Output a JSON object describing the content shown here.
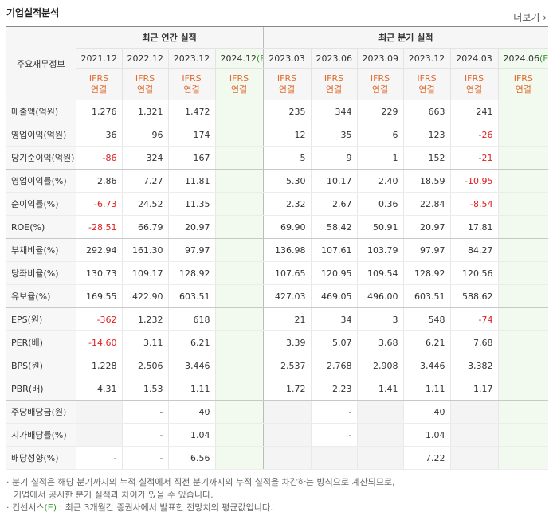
{
  "header": {
    "title": "기업실적분석",
    "more": "더보기"
  },
  "table": {
    "corner": "주요재무정보",
    "groups": [
      "최근 연간 실적",
      "최근 분기 실적"
    ],
    "columns": [
      {
        "period": "2021.12",
        "basis": "IFRS",
        "scope": "연결"
      },
      {
        "period": "2022.12",
        "basis": "IFRS",
        "scope": "연결"
      },
      {
        "period": "2023.12",
        "basis": "IFRS",
        "scope": "연결"
      },
      {
        "period": "2024.12",
        "estimate": "(E)",
        "basis": "IFRS",
        "scope": "연결"
      },
      {
        "period": "2023.03",
        "basis": "IFRS",
        "scope": "연결"
      },
      {
        "period": "2023.06",
        "basis": "IFRS",
        "scope": "연결"
      },
      {
        "period": "2023.09",
        "basis": "IFRS",
        "scope": "연결"
      },
      {
        "period": "2023.12",
        "basis": "IFRS",
        "scope": "연결"
      },
      {
        "period": "2024.03",
        "basis": "IFRS",
        "scope": "연결"
      },
      {
        "period": "2024.06",
        "estimate": "(E)",
        "basis": "IFRS",
        "scope": "연결"
      }
    ],
    "rows": [
      {
        "label": "매출액(억원)",
        "values": [
          "1,276",
          "1,321",
          "1,472",
          null,
          "235",
          "344",
          "229",
          "663",
          "241",
          null
        ]
      },
      {
        "label": "영업이익(억원)",
        "values": [
          "36",
          "96",
          "174",
          null,
          "12",
          "35",
          "6",
          "123",
          "-26",
          null
        ]
      },
      {
        "label": "당기순이익(억원)",
        "values": [
          "-86",
          "324",
          "167",
          null,
          "5",
          "9",
          "1",
          "152",
          "-21",
          null
        ]
      },
      {
        "label": "영업이익률(%)",
        "values": [
          "2.86",
          "7.27",
          "11.81",
          null,
          "5.30",
          "10.17",
          "2.40",
          "18.59",
          "-10.95",
          null
        ]
      },
      {
        "label": "순이익률(%)",
        "values": [
          "-6.73",
          "24.52",
          "11.35",
          null,
          "2.32",
          "2.67",
          "0.36",
          "22.84",
          "-8.54",
          null
        ]
      },
      {
        "label": "ROE(%)",
        "values": [
          "-28.51",
          "66.79",
          "20.97",
          null,
          "69.90",
          "58.42",
          "50.91",
          "20.97",
          "17.81",
          null
        ]
      },
      {
        "label": "부채비율(%)",
        "values": [
          "292.94",
          "161.30",
          "97.97",
          null,
          "136.98",
          "107.61",
          "103.79",
          "97.97",
          "84.27",
          null
        ]
      },
      {
        "label": "당좌비율(%)",
        "values": [
          "130.73",
          "109.17",
          "128.92",
          null,
          "107.65",
          "120.95",
          "109.54",
          "128.92",
          "120.56",
          null
        ]
      },
      {
        "label": "유보율(%)",
        "values": [
          "169.55",
          "422.90",
          "603.51",
          null,
          "427.03",
          "469.05",
          "496.00",
          "603.51",
          "588.62",
          null
        ]
      },
      {
        "label": "EPS(원)",
        "values": [
          "-362",
          "1,232",
          "618",
          null,
          "21",
          "34",
          "3",
          "548",
          "-74",
          null
        ]
      },
      {
        "label": "PER(배)",
        "values": [
          "-14.60",
          "3.11",
          "6.21",
          null,
          "3.39",
          "5.07",
          "3.68",
          "6.21",
          "7.68",
          null
        ]
      },
      {
        "label": "BPS(원)",
        "values": [
          "1,228",
          "2,506",
          "3,446",
          null,
          "2,537",
          "2,768",
          "2,908",
          "3,446",
          "3,382",
          null
        ]
      },
      {
        "label": "PBR(배)",
        "values": [
          "4.31",
          "1.53",
          "1.11",
          null,
          "1.72",
          "2.23",
          "1.41",
          "1.11",
          "1.17",
          null
        ]
      },
      {
        "label": "주당배당금(원)",
        "values": [
          null,
          "-",
          "40",
          null,
          null,
          "-",
          null,
          "40",
          null,
          null
        ]
      },
      {
        "label": "시가배당률(%)",
        "values": [
          null,
          "-",
          "1.04",
          null,
          null,
          "-",
          null,
          "1.04",
          null,
          null
        ]
      },
      {
        "label": "배당성향(%)",
        "values": [
          "-",
          "-",
          "6.56",
          null,
          null,
          null,
          null,
          "7.22",
          null,
          null
        ]
      }
    ]
  },
  "notes": [
    {
      "parts": [
        "· 분기 실적은 해당 분기까지의 누적 실적에서 직전 분기까지의 누적 실적을 차감하는 방식으로 계산되므로,"
      ]
    },
    {
      "parts": [
        "기업에서 공시한 분기 실적과 차이가 있을 수 있습니다."
      ]
    },
    {
      "parts": [
        "· 컨센서스",
        "(E)",
        " : 최근 3개월간 증권사에서 발표한 전망치의 평균값입니다."
      ]
    }
  ]
}
